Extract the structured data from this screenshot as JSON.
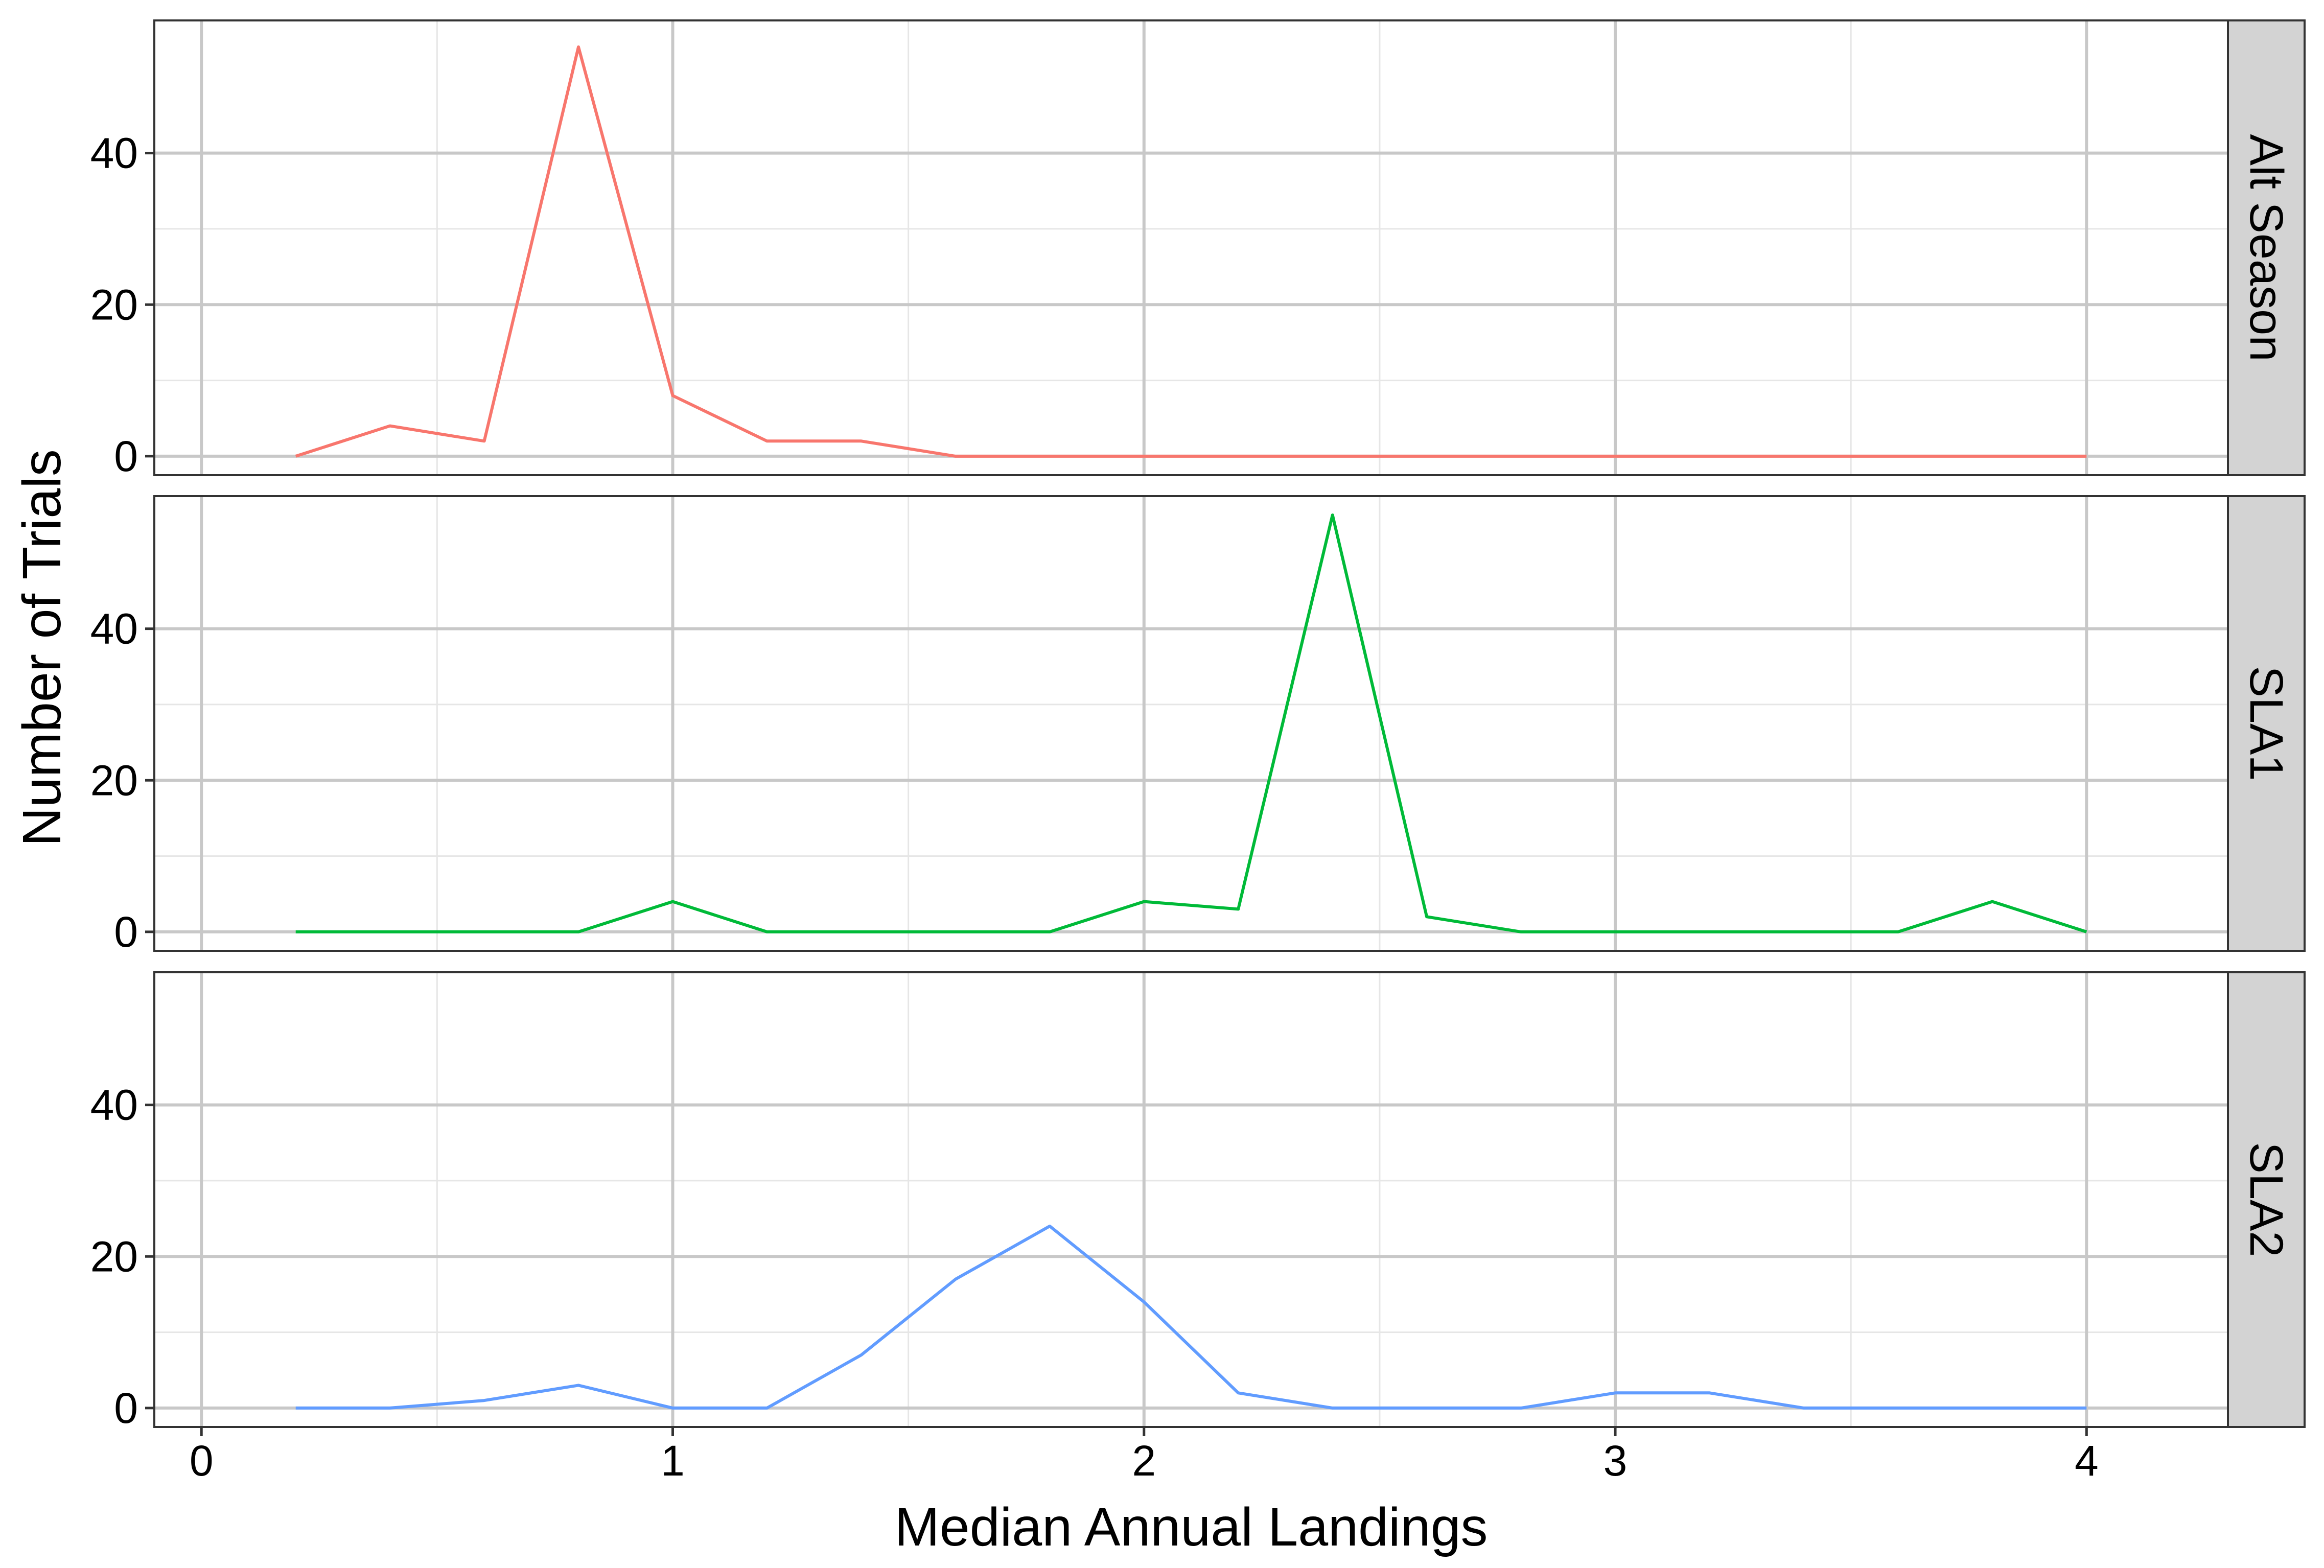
{
  "chart_data": {
    "type": "line",
    "xlabel": "Median Annual Landings",
    "ylabel": "Number of Trials",
    "xlim": [
      -0.1,
      4.3
    ],
    "ylim": [
      -2.5,
      57.5
    ],
    "x_ticks": [
      0,
      1,
      2,
      3,
      4
    ],
    "x_tick_labels": [
      "0",
      "1",
      "2",
      "3",
      "4"
    ],
    "y_ticks": [
      0,
      20,
      40
    ],
    "y_tick_labels": [
      "0",
      "20",
      "40"
    ],
    "grid": true,
    "x": [
      0.2,
      0.4,
      0.6,
      0.8,
      1.0,
      1.2,
      1.4,
      1.6,
      1.8,
      2.0,
      2.2,
      2.4,
      2.6,
      2.8,
      3.0,
      3.2,
      3.4,
      3.6,
      3.8,
      4.0
    ],
    "series": [
      {
        "facet": "Alt Season",
        "color": "#F8766D",
        "values": [
          0,
          4,
          2,
          54,
          8,
          2,
          2,
          0,
          0,
          0,
          0,
          0,
          0,
          0,
          0,
          0,
          0,
          0,
          0,
          0
        ]
      },
      {
        "facet": "SLA1",
        "color": "#00BA38",
        "values": [
          0,
          0,
          0,
          0,
          4,
          0,
          0,
          0,
          0,
          4,
          3,
          55,
          2,
          0,
          0,
          0,
          0,
          0,
          4,
          0
        ]
      },
      {
        "facet": "SLA2",
        "color": "#619CFF",
        "values": [
          0,
          0,
          1,
          3,
          0,
          0,
          7,
          17,
          24,
          14,
          2,
          0,
          0,
          0,
          2,
          2,
          0,
          0,
          0,
          0
        ]
      }
    ]
  },
  "colors": {
    "strip_fill": "#D3D3D3",
    "grid_major": "#C8C8C8",
    "grid_minor": "#E6E6E6",
    "panel_border": "#333333"
  }
}
